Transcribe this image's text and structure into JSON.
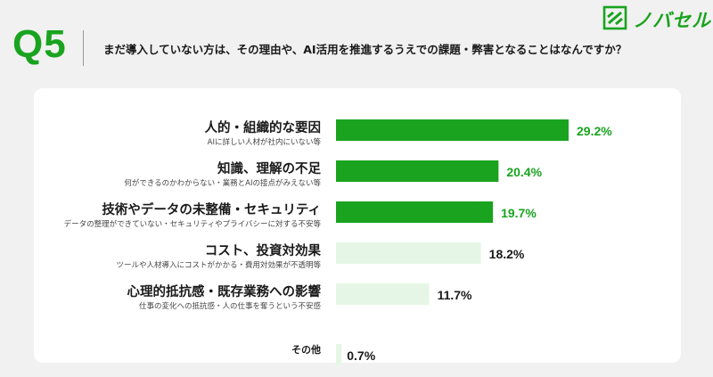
{
  "header": {
    "q_label": "Q5",
    "question": "まだ導入していない方は、その理由や、AI活用を推進するうえでの課題・弊害となることはなんですか？"
  },
  "logo": {
    "text": "ノバセル",
    "icon": "novasell-logo-icon"
  },
  "colors": {
    "highlight": "#1aa31f",
    "muted_bar": "#e6f6e6",
    "muted_text": "#1a1a1a",
    "background": "#f1f1f1"
  },
  "chart_data": {
    "type": "bar",
    "orientation": "horizontal",
    "categories": [
      {
        "title": "人的・組織的な要因",
        "subtitle": "AIに詳しい人材が社内にいない等"
      },
      {
        "title": "知識、理解の不足",
        "subtitle": "何ができるのかわからない・業務とAIの接点がみえない等"
      },
      {
        "title": "技術やデータの未整備・セキュリティ",
        "subtitle": "データの整理ができていない・セキュリティやプライバシーに対する不安等"
      },
      {
        "title": "コスト、投資対効果",
        "subtitle": "ツールや人材導入にコストがかかる・費用対効果が不透明等"
      },
      {
        "title": "心理的抵抗感・既存業務への影響",
        "subtitle": "仕事の変化への抵抗感・人の仕事を奪うという不安感"
      },
      {
        "title": "その他",
        "subtitle": ""
      }
    ],
    "values": [
      29.2,
      20.4,
      19.7,
      18.2,
      11.7,
      0.7
    ],
    "value_labels": [
      "29.2%",
      "20.4%",
      "19.7%",
      "18.2%",
      "11.7%",
      "0.7%"
    ],
    "highlighted": [
      true,
      true,
      true,
      false,
      false,
      false
    ],
    "xlim": [
      0,
      29.2
    ],
    "grid": false,
    "legend": "none"
  }
}
